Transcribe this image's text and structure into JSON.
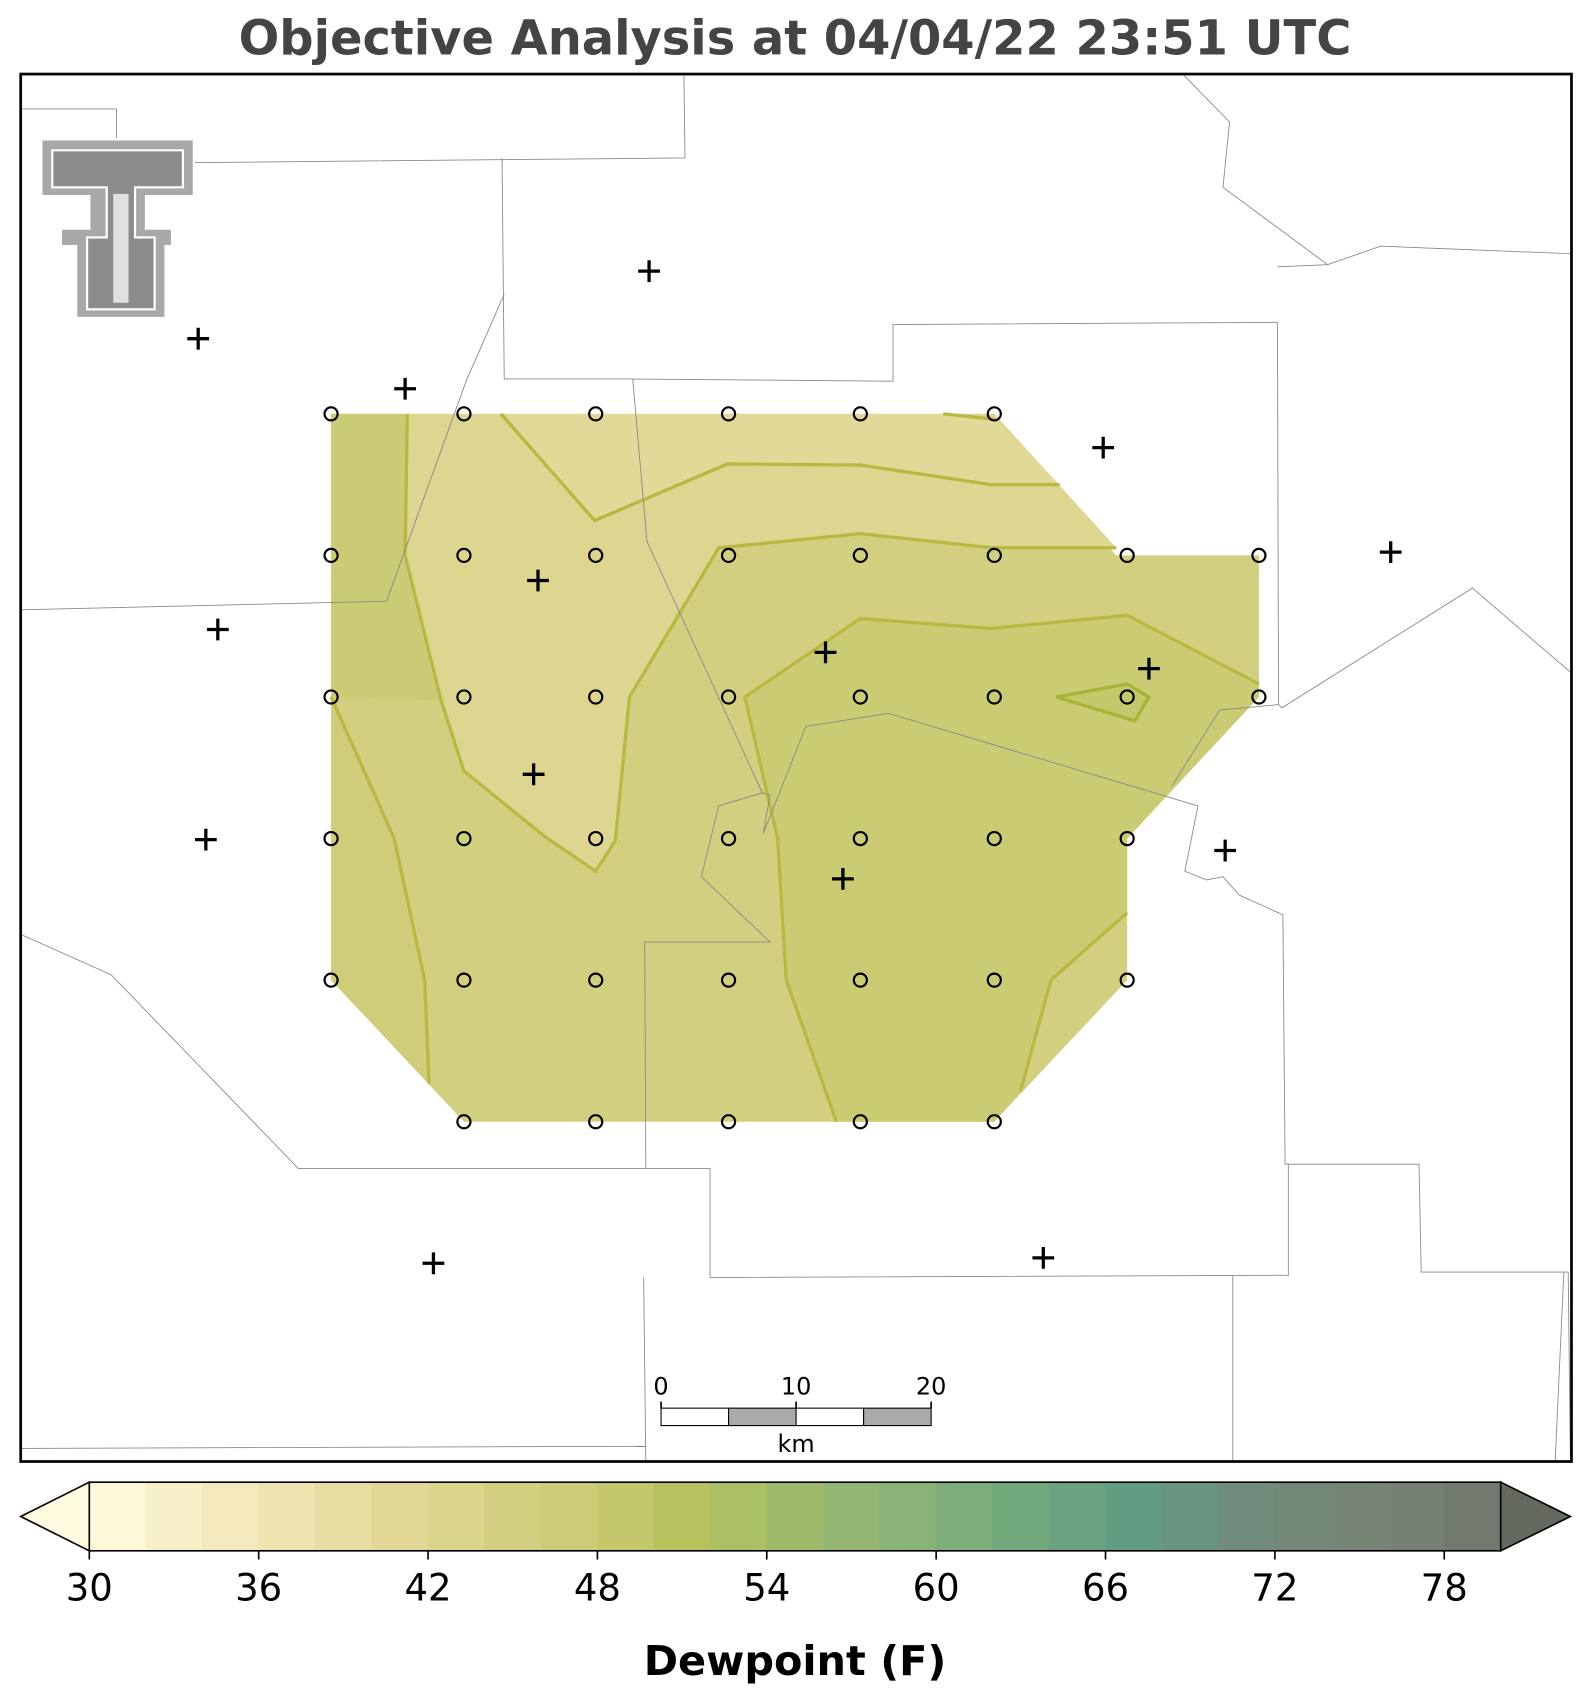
{
  "chart_data": {
    "type": "contour",
    "title": "Objective Analysis at 04/04/22 23:51 UTC",
    "colorbar": {
      "label": "Dewpoint (F)",
      "levels": [
        30,
        32,
        34,
        36,
        38,
        40,
        42,
        44,
        46,
        48,
        50,
        52,
        54,
        56,
        58,
        60,
        62,
        64,
        66,
        68,
        70,
        72,
        74,
        76,
        78,
        80
      ],
      "colors": [
        "#fdf8d8",
        "#f8f0c8",
        "#f3e9bd",
        "#efe3b0",
        "#e9dea2",
        "#e2d796",
        "#dbd48c",
        "#d4d082",
        "#cccc76",
        "#c3c96a",
        "#b7c25f",
        "#abc063",
        "#9fba6b",
        "#93b672",
        "#88b276",
        "#7dad79",
        "#72a97c",
        "#6aa380",
        "#629c82",
        "#69947f",
        "#6f8c7c",
        "#748879",
        "#768476",
        "#778075",
        "#727a70"
      ],
      "under_color": "#fffbe0",
      "over_color": "#646a5f",
      "ticks": [
        30,
        36,
        42,
        48,
        54,
        60,
        66,
        72,
        78
      ]
    },
    "scale_bar": {
      "ticks": [
        0,
        10,
        20
      ],
      "label": "km"
    }
  }
}
